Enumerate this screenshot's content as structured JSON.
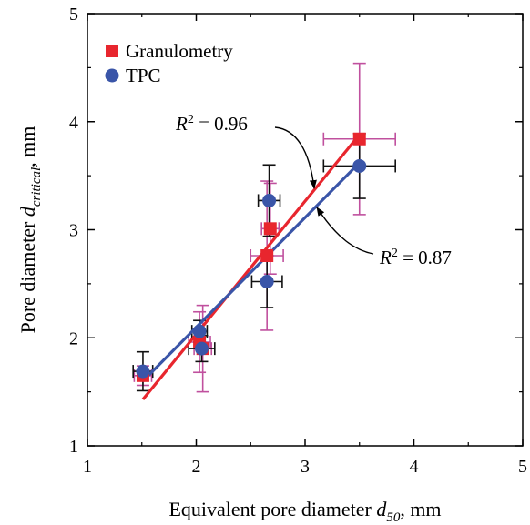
{
  "chart_data": {
    "type": "scatter",
    "title": "",
    "xlabel": {
      "main": "Equivalent pore diameter ",
      "var": "d",
      "sub": "50",
      "unit": ", mm"
    },
    "ylabel": {
      "main": "Pore diameter ",
      "var": "d",
      "sub": "critical",
      "unit": ", mm"
    },
    "xlim": [
      1,
      5
    ],
    "ylim": [
      1,
      5
    ],
    "xticks": [
      "1",
      "2",
      "3",
      "4",
      "5"
    ],
    "yticks": [
      "1",
      "2",
      "3",
      "4",
      "5"
    ],
    "grid": false,
    "legend_position": "top-left",
    "series": [
      {
        "name": "Granulometry",
        "marker": "square",
        "color": "#e8262e",
        "errcolor": "#c0509e",
        "points": [
          {
            "x": 1.51,
            "y": 1.65,
            "xerr": 0.08,
            "yerr": 0.09
          },
          {
            "x": 2.03,
            "y": 1.96,
            "xerr": 0.1,
            "yerr": 0.28
          },
          {
            "x": 2.06,
            "y": 1.9,
            "xerr": 0.08,
            "yerr": 0.4
          },
          {
            "x": 2.65,
            "y": 2.76,
            "xerr": 0.15,
            "yerr": 0.69
          },
          {
            "x": 2.68,
            "y": 3.01,
            "xerr": 0.08,
            "yerr": 0.42
          },
          {
            "x": 3.5,
            "y": 3.84,
            "xerr": 0.33,
            "yerr": 0.7
          }
        ],
        "fit": {
          "x": [
            1.51,
            3.5
          ],
          "y": [
            1.43,
            3.88
          ],
          "r2_prefix": "R",
          "r2_exp": "2",
          "r2_value": " = 0.96"
        }
      },
      {
        "name": "TPC",
        "marker": "circle",
        "color": "#3a55a8",
        "errcolor": "#111111",
        "points": [
          {
            "x": 1.51,
            "y": 1.69,
            "xerr": 0.09,
            "yerr": 0.18
          },
          {
            "x": 2.03,
            "y": 2.06,
            "xerr": 0.07,
            "yerr": 0.1
          },
          {
            "x": 2.05,
            "y": 1.9,
            "xerr": 0.12,
            "yerr": 0.12
          },
          {
            "x": 2.65,
            "y": 2.52,
            "xerr": 0.14,
            "yerr": 0.24
          },
          {
            "x": 2.67,
            "y": 3.27,
            "xerr": 0.1,
            "yerr": 0.33
          },
          {
            "x": 3.5,
            "y": 3.59,
            "xerr": 0.33,
            "yerr": 0.3
          }
        ],
        "fit": {
          "x": [
            1.51,
            3.5
          ],
          "y": [
            1.6,
            3.62
          ],
          "r2_prefix": "R",
          "r2_exp": "2",
          "r2_value": " = 0.87"
        }
      }
    ]
  }
}
